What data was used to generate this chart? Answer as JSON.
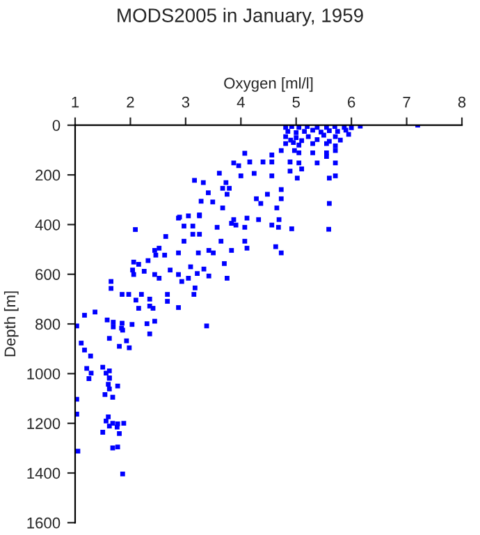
{
  "chart_data": {
    "type": "scatter",
    "title": "MODS2005 in January, 1959",
    "xlabel": "Oxygen [ml/l]",
    "ylabel": "Depth [m]",
    "xlim": [
      1,
      8
    ],
    "xticks": [
      1,
      2,
      3,
      4,
      5,
      6,
      7,
      8
    ],
    "ylim": [
      1600,
      0
    ],
    "yticks": [
      0,
      200,
      400,
      600,
      800,
      1000,
      1200,
      1400,
      1600
    ],
    "grid": false,
    "legend": false,
    "marker": "square",
    "series": [
      {
        "color": "#0000ff",
        "x": [
          7.2,
          6.16,
          6.0,
          5.87,
          5.7,
          5.55,
          5.38,
          5.2,
          5.05,
          4.92,
          4.81,
          5.9,
          5.75,
          5.6,
          5.45,
          5.3,
          5.15,
          5.0,
          4.85,
          5.95,
          5.71,
          5.5,
          5.22,
          5.0,
          4.81,
          5.8,
          5.6,
          5.38,
          5.1,
          4.9,
          4.81,
          5.71,
          5.55,
          5.3,
          5.05,
          4.95,
          5.71,
          5.55,
          5.3,
          5.05,
          4.97,
          4.73,
          5.55,
          4.56,
          4.16,
          4.4,
          4.56,
          4.89,
          5.05,
          5.38,
          5.71,
          4.07,
          3.87,
          3.96,
          3.61,
          3.16,
          3.32,
          3.73,
          3.67,
          3.79,
          3.41,
          3.75,
          3.28,
          3.49,
          3.67,
          4.0,
          4.24,
          4.56,
          4.89,
          5.02,
          5.1,
          4.73,
          4.48,
          4.28,
          4.36,
          4.73,
          4.65,
          5.6,
          5.71,
          5.6,
          2.89,
          3.25,
          3.87,
          4.11,
          4.32,
          4.69,
          2.09,
          5.59,
          4.92,
          2.87,
          3.05,
          3.25,
          2.97,
          3.13,
          3.13,
          2.97,
          2.64,
          3.25,
          3.57,
          3.91,
          4.07,
          3.83,
          4.56,
          4.68,
          4.73,
          4.63,
          4.07,
          4.11,
          3.64,
          3.83,
          3.42,
          3.5,
          3.23,
          2.87,
          2.52,
          2.44,
          2.46,
          2.62,
          2.06,
          2.32,
          2.15,
          2.04,
          2.06,
          2.25,
          2.44,
          2.52,
          2.72,
          2.87,
          2.93,
          3.05,
          3.09,
          3.21,
          3.33,
          3.42,
          3.75,
          3.7,
          1.65,
          1.65,
          1.85,
          1.97,
          2.2,
          2.1,
          2.35,
          2.35,
          2.41,
          2.15,
          2.67,
          2.67,
          2.87,
          3.15,
          3.17,
          1.17,
          1.36,
          1.03,
          1.58,
          1.69,
          1.69,
          1.85,
          2.03,
          2.3,
          2.44,
          2.35,
          3.38,
          1.62,
          1.84,
          1.86,
          1.93,
          1.8,
          1.98,
          1.11,
          1.17,
          1.28,
          1.21,
          1.29,
          1.5,
          1.56,
          1.62,
          1.62,
          1.25,
          1.62,
          1.6,
          1.77,
          1.62,
          1.54,
          1.68,
          1.03,
          1.03,
          1.6,
          1.56,
          1.68,
          1.77,
          1.88,
          1.62,
          1.76,
          1.5,
          1.8,
          1.68,
          1.77,
          1.05,
          1.86
        ],
        "values": [
          0,
          4,
          10,
          9,
          5,
          9,
          9,
          5,
          9,
          5,
          9,
          20,
          25,
          22,
          28,
          20,
          25,
          30,
          25,
          37,
          46,
          40,
          46,
          50,
          46,
          60,
          65,
          58,
          62,
          60,
          74,
          83,
          74,
          74,
          80,
          70,
          102,
          111,
          111,
          111,
          102,
          102,
          126,
          120,
          148,
          148,
          148,
          148,
          152,
          152,
          152,
          113,
          152,
          163,
          193,
          222,
          231,
          231,
          254,
          254,
          272,
          278,
          306,
          309,
          333,
          204,
          194,
          204,
          185,
          213,
          176,
          259,
          278,
          296,
          315,
          296,
          333,
          213,
          204,
          315,
          370,
          361,
          380,
          374,
          380,
          380,
          420,
          419,
          417,
          374,
          365,
          365,
          406,
          406,
          439,
          467,
          448,
          439,
          411,
          402,
          411,
          395,
          402,
          411,
          514,
          489,
          467,
          495,
          467,
          504,
          504,
          514,
          514,
          514,
          495,
          504,
          523,
          523,
          551,
          545,
          560,
          583,
          601,
          588,
          601,
          616,
          583,
          601,
          629,
          616,
          570,
          597,
          579,
          607,
          616,
          557,
          629,
          657,
          681,
          681,
          681,
          704,
          700,
          728,
          737,
          737,
          681,
          709,
          734,
          681,
          655,
          765,
          752,
          808,
          784,
          793,
          812,
          797,
          802,
          799,
          789,
          840,
          808,
          858,
          817,
          825,
          868,
          890,
          896,
          877,
          905,
          929,
          979,
          998,
          974,
          998,
          989,
          1017,
          1020,
          1019,
          1043,
          1050,
          1062,
          1084,
          1095,
          1103,
          1163,
          1174,
          1191,
          1200,
          1202,
          1200,
          1211,
          1215,
          1236,
          1241,
          1299,
          1295,
          1312,
          1404
        ]
      }
    ]
  }
}
